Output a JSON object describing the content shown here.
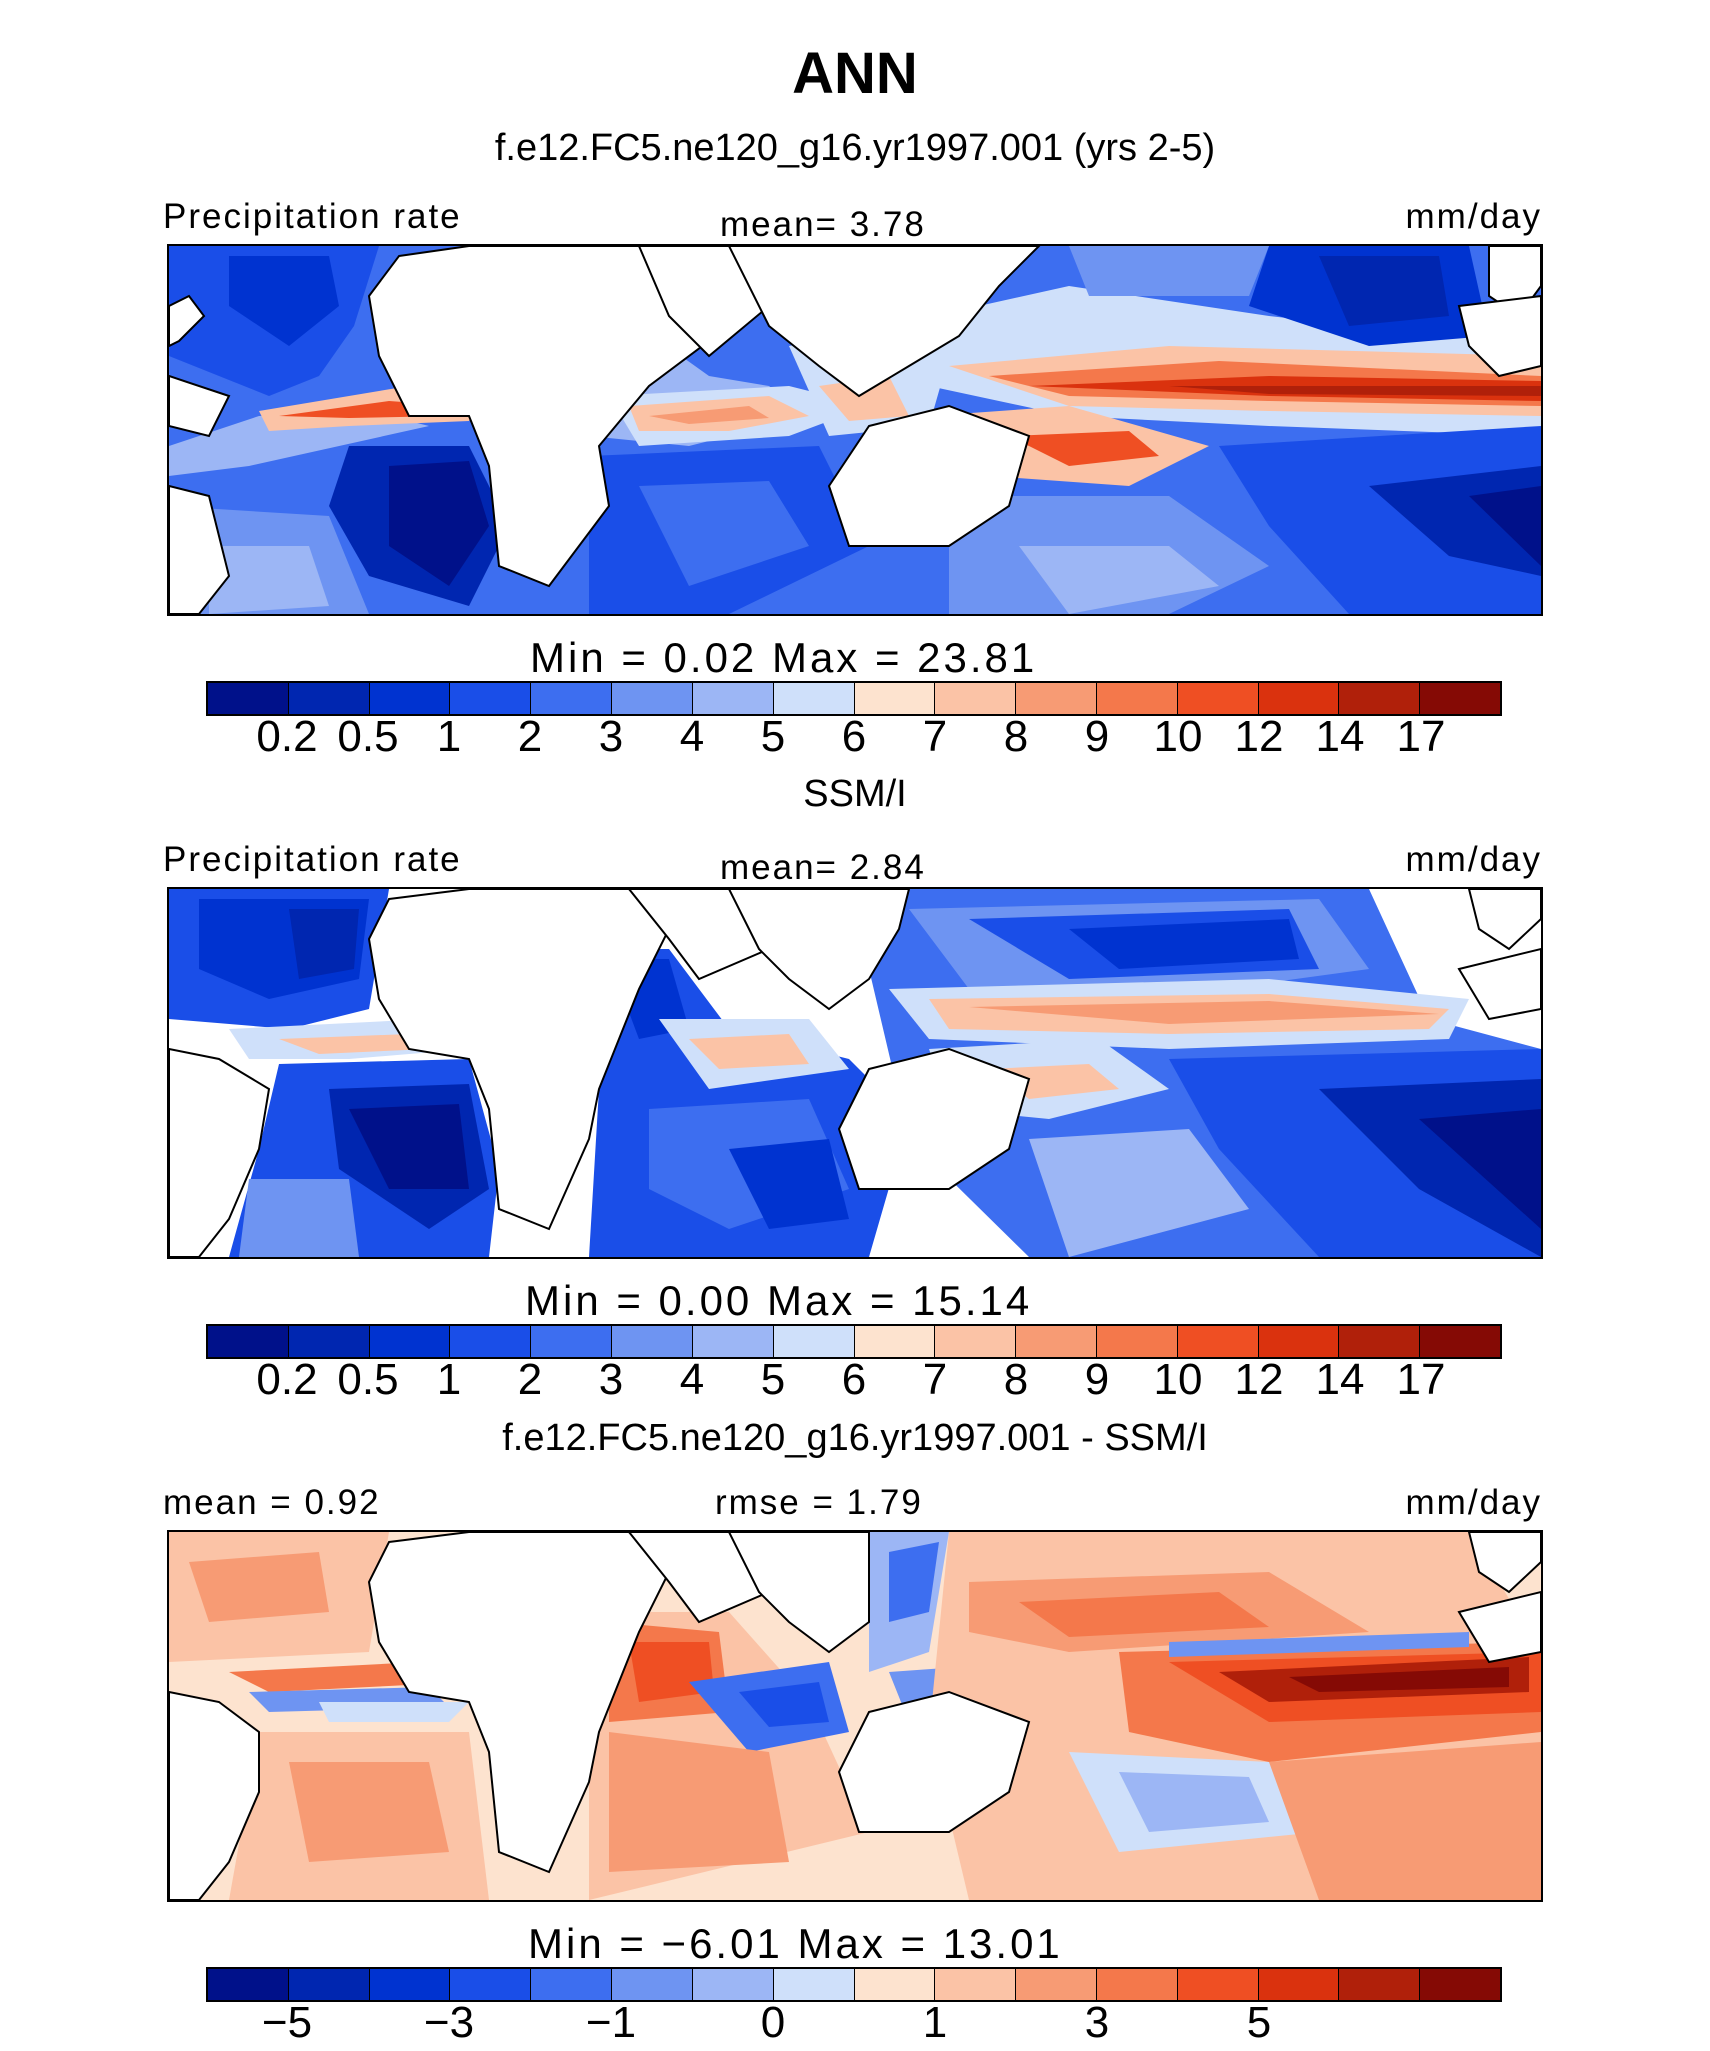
{
  "title": "ANN",
  "colors": [
    "#00118a",
    "#0026b0",
    "#0033d0",
    "#1a4ee8",
    "#3d6ef0",
    "#6e94f2",
    "#9cb6f5",
    "#cfe0fa",
    "#fde3cf",
    "#fbc3a6",
    "#f79b74",
    "#f4784b",
    "#ef4f23",
    "#da320e",
    "#b0200a",
    "#850a05"
  ],
  "land_color": "#ffffff",
  "panels": [
    {
      "id": "model",
      "subtitle": "f.e12.FC5.ne120_g16.yr1997.001 (yrs 2-5)",
      "left_label": "Precipitation rate",
      "center_label": "mean=   3.78",
      "right_label": "mm/day",
      "minmax": "Min  =     0.02  Max  =    23.81",
      "ticks": [
        "0.2",
        "0.5",
        "1",
        "2",
        "3",
        "4",
        "5",
        "6",
        "7",
        "8",
        "9",
        "10",
        "12",
        "14",
        "17"
      ]
    },
    {
      "id": "obs",
      "subtitle": "SSM/I",
      "left_label": "Precipitation rate",
      "center_label": "mean=   2.84",
      "right_label": "mm/day",
      "minmax": "Min  =     0.00  Max  =    15.14",
      "ticks": [
        "0.2",
        "0.5",
        "1",
        "2",
        "3",
        "4",
        "5",
        "6",
        "7",
        "8",
        "9",
        "10",
        "12",
        "14",
        "17"
      ]
    },
    {
      "id": "diff",
      "subtitle": "f.e12.FC5.ne120_g16.yr1997.001 - SSM/I",
      "left_label": "mean =    0.92",
      "center_label": "rmse =    1.79",
      "right_label": "mm/day",
      "minmax": "Min  =   −6.01  Max  =    13.01",
      "ticks": [
        "−5",
        "−3",
        "−1",
        "0",
        "1",
        "3",
        "5"
      ]
    }
  ],
  "chart_data": [
    {
      "type": "heatmap",
      "title": "ANN",
      "subtitle": "f.e12.FC5.ne120_g16.yr1997.001 (yrs 2-5)",
      "variable": "Precipitation rate",
      "units": "mm/day",
      "mean": 3.78,
      "min": 0.02,
      "max": 23.81,
      "contour_levels": [
        0.2,
        0.5,
        1,
        2,
        3,
        4,
        5,
        6,
        7,
        8,
        9,
        10,
        12,
        14,
        17
      ]
    },
    {
      "type": "heatmap",
      "subtitle": "SSM/I",
      "variable": "Precipitation rate",
      "units": "mm/day",
      "mean": 2.84,
      "min": 0.0,
      "max": 15.14,
      "contour_levels": [
        0.2,
        0.5,
        1,
        2,
        3,
        4,
        5,
        6,
        7,
        8,
        9,
        10,
        12,
        14,
        17
      ]
    },
    {
      "type": "heatmap",
      "subtitle": "f.e12.FC5.ne120_g16.yr1997.001 - SSM/I",
      "units": "mm/day",
      "mean": 0.92,
      "rmse": 1.79,
      "min": -6.01,
      "max": 13.01,
      "contour_levels": [
        -5,
        -4,
        -3,
        -2,
        -1,
        -0.5,
        0,
        0.5,
        1,
        2,
        3,
        4,
        5,
        6,
        7
      ],
      "labeled_ticks": [
        -5,
        -3,
        -1,
        0,
        1,
        3,
        5
      ]
    }
  ]
}
